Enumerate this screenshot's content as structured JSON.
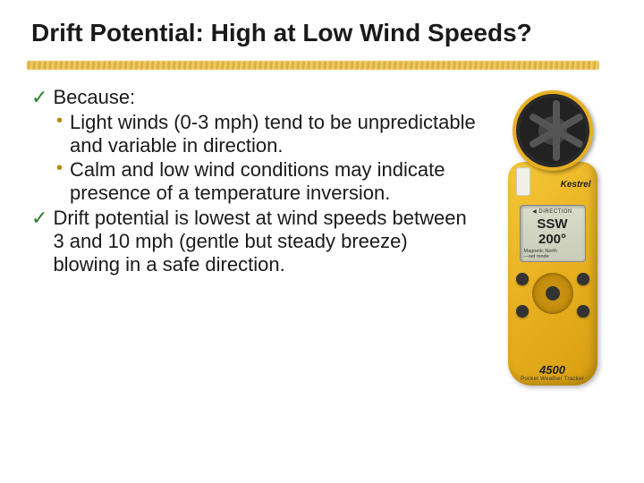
{
  "title": "Drift Potential:  High at Low Wind Speeds?",
  "list": {
    "item1": {
      "label": "Because:",
      "sub1": "Light winds (0-3 mph) tend to be unpredictable and variable in direction.",
      "sub2": "Calm and low wind conditions may indicate presence of a temperature inversion."
    },
    "item2": {
      "label": "Drift potential is lowest at wind speeds between 3 and 10 mph (gentle but steady breeze) blowing in a safe direction."
    }
  },
  "device": {
    "brand": "Kestrel",
    "screen_label": "◀ DIRECTION",
    "screen_main": "SSW 200°",
    "screen_sub1": "Magnetic North",
    "screen_sub2": "—set mode",
    "model": "4500",
    "model_sub": "Pocket Weather Tracker"
  },
  "colors": {
    "check": "#2e7d32",
    "dot": "#b8860b",
    "device_body": "#e8b020",
    "underline": "#e6c04a"
  }
}
